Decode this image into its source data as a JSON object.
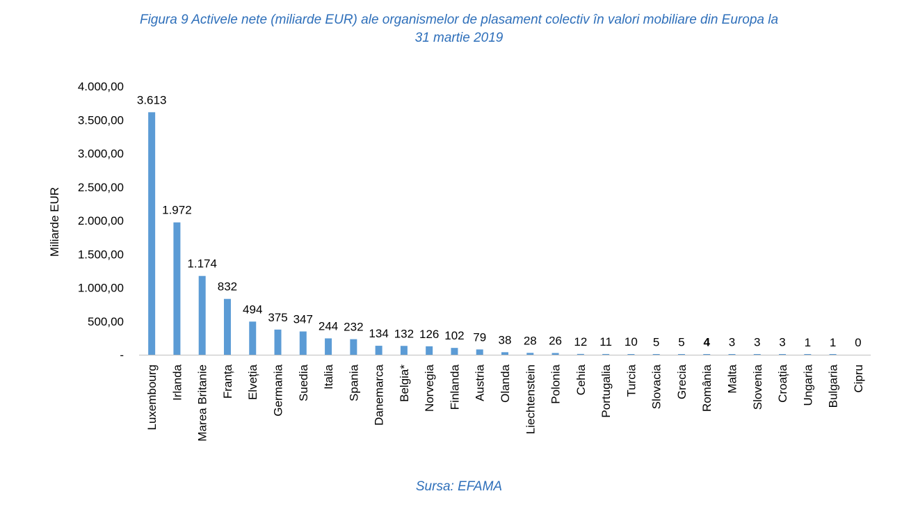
{
  "title_line1": "Figura 9 Activele nete (miliarde EUR) ale organismelor de plasament colectiv în valori mobiliare din Europa la",
  "title_line2": "31 martie 2019",
  "source": "Sursa: EFAMA",
  "colors": {
    "bar": "#5b9bd5",
    "title": "#2e6fba",
    "highlight": "#2e6fba"
  },
  "chart_data": {
    "type": "bar",
    "title": "Figura 9 Activele nete (miliarde EUR) ale organismelor de plasament colectiv în valori mobiliare din Europa la 31 martie 2019",
    "ylabel": "Miliarde EUR",
    "xlabel": "",
    "ylim": [
      0,
      4000
    ],
    "yticks": [
      "-",
      "500,00",
      "1.000,00",
      "1.500,00",
      "2.000,00",
      "2.500,00",
      "3.000,00",
      "3.500,00",
      "4.000,00"
    ],
    "grid": false,
    "categories": [
      "Luxembourg",
      "Irlanda",
      "Marea Britanie",
      "Franța",
      "Elveția",
      "Germania",
      "Suedia",
      "Italia",
      "Spania",
      "Danemarca",
      "Belgia*",
      "Norvegia",
      "Finlanda",
      "Austria",
      "Olanda",
      "Liechtenstein",
      "Polonia",
      "Cehia",
      "Portugalia",
      "Turcia",
      "Slovacia",
      "Grecia",
      "România",
      "Malta",
      "Slovenia",
      "Croația",
      "Ungaria",
      "Bulgaria",
      "Cipru"
    ],
    "values": [
      3613,
      1972,
      1174,
      832,
      494,
      375,
      347,
      244,
      232,
      134,
      132,
      126,
      102,
      79,
      38,
      28,
      26,
      12,
      11,
      10,
      5,
      5,
      4,
      3,
      3,
      3,
      1,
      1,
      0
    ],
    "data_labels": [
      "3.613",
      "1.972",
      "1.174",
      "832",
      "494",
      "375",
      "347",
      "244",
      "232",
      "134",
      "132",
      "126",
      "102",
      "79",
      "38",
      "28",
      "26",
      "12",
      "11",
      "10",
      "5",
      "5",
      "4",
      "3",
      "3",
      "3",
      "1",
      "1",
      "0"
    ],
    "highlight_category": "România"
  }
}
